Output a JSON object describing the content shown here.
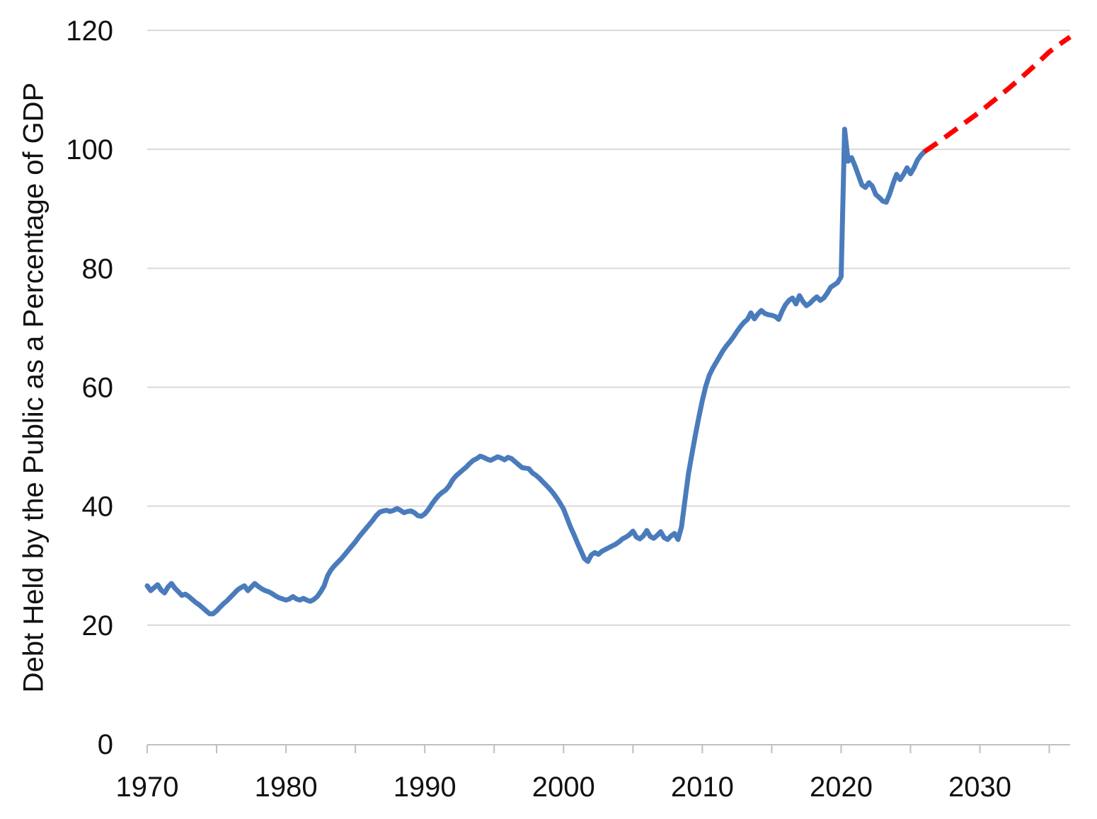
{
  "chart_data": {
    "type": "line",
    "title": "",
    "xlabel": "",
    "ylabel": "Debt Held by the Public as a Percentage of GDP",
    "xlim": [
      1970,
      2036.5
    ],
    "ylim": [
      0,
      120
    ],
    "y_ticks": [
      0,
      20,
      40,
      60,
      80,
      100,
      120
    ],
    "x_tick_labels": [
      1970,
      1980,
      1990,
      2000,
      2010,
      2020,
      2030
    ],
    "x_minor_ticks": [
      1970,
      1975,
      1980,
      1985,
      1990,
      1995,
      2000,
      2005,
      2010,
      2015,
      2020,
      2025,
      2030,
      2035
    ],
    "grid": "horizontal",
    "legend": "none",
    "colors": {
      "historical": "#4A7CBC",
      "projection": "#FF0000",
      "gridline": "#D9D9D9",
      "axis": "#BFBFBF",
      "text": "#111111",
      "background": "#FFFFFF"
    },
    "series": [
      {
        "name": "historical",
        "style": "solid",
        "color_key": "historical",
        "points": [
          [
            1970.0,
            26.6
          ],
          [
            1970.25,
            25.8
          ],
          [
            1970.5,
            26.3
          ],
          [
            1970.75,
            26.8
          ],
          [
            1971.0,
            25.9
          ],
          [
            1971.25,
            25.4
          ],
          [
            1971.5,
            26.4
          ],
          [
            1971.75,
            27.0
          ],
          [
            1972.0,
            26.2
          ],
          [
            1972.25,
            25.6
          ],
          [
            1972.5,
            25.0
          ],
          [
            1972.75,
            25.2
          ],
          [
            1973.0,
            24.8
          ],
          [
            1973.25,
            24.3
          ],
          [
            1973.5,
            23.8
          ],
          [
            1973.75,
            23.4
          ],
          [
            1974.0,
            22.9
          ],
          [
            1974.25,
            22.4
          ],
          [
            1974.5,
            21.9
          ],
          [
            1974.75,
            21.9
          ],
          [
            1975.0,
            22.4
          ],
          [
            1975.25,
            23.0
          ],
          [
            1975.5,
            23.6
          ],
          [
            1975.75,
            24.1
          ],
          [
            1976.0,
            24.7
          ],
          [
            1976.25,
            25.3
          ],
          [
            1976.5,
            25.9
          ],
          [
            1976.75,
            26.3
          ],
          [
            1977.0,
            26.6
          ],
          [
            1977.25,
            25.8
          ],
          [
            1977.5,
            26.4
          ],
          [
            1977.75,
            27.0
          ],
          [
            1978.0,
            26.5
          ],
          [
            1978.25,
            26.1
          ],
          [
            1978.5,
            25.8
          ],
          [
            1978.75,
            25.6
          ],
          [
            1979.0,
            25.3
          ],
          [
            1979.25,
            24.9
          ],
          [
            1979.5,
            24.6
          ],
          [
            1979.75,
            24.4
          ],
          [
            1980.0,
            24.2
          ],
          [
            1980.25,
            24.4
          ],
          [
            1980.5,
            24.8
          ],
          [
            1980.75,
            24.4
          ],
          [
            1981.0,
            24.2
          ],
          [
            1981.25,
            24.5
          ],
          [
            1981.5,
            24.2
          ],
          [
            1981.75,
            24.0
          ],
          [
            1982.0,
            24.3
          ],
          [
            1982.25,
            24.8
          ],
          [
            1982.5,
            25.6
          ],
          [
            1982.75,
            26.6
          ],
          [
            1983.0,
            28.3
          ],
          [
            1983.25,
            29.3
          ],
          [
            1983.5,
            30.0
          ],
          [
            1983.75,
            30.6
          ],
          [
            1984.0,
            31.2
          ],
          [
            1984.25,
            31.9
          ],
          [
            1984.5,
            32.6
          ],
          [
            1984.75,
            33.3
          ],
          [
            1985.0,
            34.0
          ],
          [
            1985.25,
            34.8
          ],
          [
            1985.5,
            35.5
          ],
          [
            1985.75,
            36.2
          ],
          [
            1986.0,
            36.9
          ],
          [
            1986.25,
            37.6
          ],
          [
            1986.5,
            38.4
          ],
          [
            1986.75,
            39.0
          ],
          [
            1987.0,
            39.2
          ],
          [
            1987.25,
            39.3
          ],
          [
            1987.5,
            39.1
          ],
          [
            1987.75,
            39.3
          ],
          [
            1988.0,
            39.6
          ],
          [
            1988.25,
            39.3
          ],
          [
            1988.5,
            38.9
          ],
          [
            1988.75,
            39.1
          ],
          [
            1989.0,
            39.2
          ],
          [
            1989.25,
            38.9
          ],
          [
            1989.5,
            38.4
          ],
          [
            1989.75,
            38.3
          ],
          [
            1990.0,
            38.7
          ],
          [
            1990.25,
            39.4
          ],
          [
            1990.5,
            40.3
          ],
          [
            1990.75,
            41.1
          ],
          [
            1991.0,
            41.8
          ],
          [
            1991.25,
            42.3
          ],
          [
            1991.5,
            42.7
          ],
          [
            1991.75,
            43.4
          ],
          [
            1992.0,
            44.4
          ],
          [
            1992.25,
            45.1
          ],
          [
            1992.5,
            45.6
          ],
          [
            1992.75,
            46.1
          ],
          [
            1993.0,
            46.6
          ],
          [
            1993.25,
            47.2
          ],
          [
            1993.5,
            47.7
          ],
          [
            1993.75,
            48.0
          ],
          [
            1994.0,
            48.4
          ],
          [
            1994.25,
            48.2
          ],
          [
            1994.5,
            47.9
          ],
          [
            1994.75,
            47.7
          ],
          [
            1995.0,
            48.0
          ],
          [
            1995.25,
            48.3
          ],
          [
            1995.5,
            48.1
          ],
          [
            1995.75,
            47.8
          ],
          [
            1996.0,
            48.2
          ],
          [
            1996.25,
            48.0
          ],
          [
            1996.5,
            47.5
          ],
          [
            1996.75,
            47.0
          ],
          [
            1997.0,
            46.5
          ],
          [
            1997.25,
            46.4
          ],
          [
            1997.5,
            46.3
          ],
          [
            1997.75,
            45.6
          ],
          [
            1998.0,
            45.2
          ],
          [
            1998.25,
            44.7
          ],
          [
            1998.5,
            44.1
          ],
          [
            1998.75,
            43.5
          ],
          [
            1999.0,
            42.9
          ],
          [
            1999.25,
            42.2
          ],
          [
            1999.5,
            41.4
          ],
          [
            1999.75,
            40.5
          ],
          [
            2000.0,
            39.5
          ],
          [
            2000.25,
            38.0
          ],
          [
            2000.5,
            36.5
          ],
          [
            2000.75,
            35.2
          ],
          [
            2001.0,
            33.8
          ],
          [
            2001.25,
            32.5
          ],
          [
            2001.5,
            31.2
          ],
          [
            2001.75,
            30.7
          ],
          [
            2002.0,
            31.8
          ],
          [
            2002.25,
            32.2
          ],
          [
            2002.5,
            31.9
          ],
          [
            2002.75,
            32.4
          ],
          [
            2003.0,
            32.7
          ],
          [
            2003.25,
            33.0
          ],
          [
            2003.5,
            33.3
          ],
          [
            2003.75,
            33.6
          ],
          [
            2004.0,
            34.0
          ],
          [
            2004.25,
            34.5
          ],
          [
            2004.5,
            34.8
          ],
          [
            2004.75,
            35.2
          ],
          [
            2005.0,
            35.8
          ],
          [
            2005.25,
            34.8
          ],
          [
            2005.5,
            34.5
          ],
          [
            2005.75,
            35.0
          ],
          [
            2006.0,
            35.9
          ],
          [
            2006.25,
            34.9
          ],
          [
            2006.5,
            34.6
          ],
          [
            2006.75,
            35.1
          ],
          [
            2007.0,
            35.7
          ],
          [
            2007.25,
            34.7
          ],
          [
            2007.5,
            34.4
          ],
          [
            2007.75,
            35.0
          ],
          [
            2008.0,
            35.4
          ],
          [
            2008.25,
            34.4
          ],
          [
            2008.5,
            36.5
          ],
          [
            2008.75,
            41.0
          ],
          [
            2009.0,
            45.5
          ],
          [
            2009.25,
            48.8
          ],
          [
            2009.5,
            52.0
          ],
          [
            2009.75,
            55.0
          ],
          [
            2010.0,
            57.8
          ],
          [
            2010.25,
            60.2
          ],
          [
            2010.5,
            62.0
          ],
          [
            2010.75,
            63.2
          ],
          [
            2011.0,
            64.2
          ],
          [
            2011.25,
            65.2
          ],
          [
            2011.5,
            66.2
          ],
          [
            2011.75,
            67.0
          ],
          [
            2012.0,
            67.7
          ],
          [
            2012.25,
            68.5
          ],
          [
            2012.5,
            69.4
          ],
          [
            2012.75,
            70.2
          ],
          [
            2013.0,
            70.9
          ],
          [
            2013.25,
            71.4
          ],
          [
            2013.5,
            72.5
          ],
          [
            2013.75,
            71.5
          ],
          [
            2014.0,
            72.3
          ],
          [
            2014.25,
            72.9
          ],
          [
            2014.5,
            72.4
          ],
          [
            2014.75,
            72.2
          ],
          [
            2015.0,
            72.1
          ],
          [
            2015.25,
            71.9
          ],
          [
            2015.5,
            71.4
          ],
          [
            2015.75,
            72.8
          ],
          [
            2016.0,
            73.9
          ],
          [
            2016.25,
            74.6
          ],
          [
            2016.5,
            75.0
          ],
          [
            2016.75,
            74.0
          ],
          [
            2017.0,
            75.4
          ],
          [
            2017.25,
            74.4
          ],
          [
            2017.5,
            73.7
          ],
          [
            2017.75,
            74.1
          ],
          [
            2018.0,
            74.7
          ],
          [
            2018.25,
            75.2
          ],
          [
            2018.5,
            74.6
          ],
          [
            2018.75,
            75.0
          ],
          [
            2019.0,
            75.8
          ],
          [
            2019.25,
            76.8
          ],
          [
            2019.5,
            77.2
          ],
          [
            2019.75,
            77.6
          ],
          [
            2020.0,
            78.6
          ],
          [
            2020.25,
            103.4
          ],
          [
            2020.5,
            98.0
          ],
          [
            2020.75,
            98.6
          ],
          [
            2021.0,
            97.2
          ],
          [
            2021.25,
            95.6
          ],
          [
            2021.5,
            94.0
          ],
          [
            2021.75,
            93.6
          ],
          [
            2022.0,
            94.4
          ],
          [
            2022.25,
            93.8
          ],
          [
            2022.5,
            92.4
          ],
          [
            2022.75,
            91.9
          ],
          [
            2023.0,
            91.3
          ],
          [
            2023.25,
            91.1
          ],
          [
            2023.5,
            92.5
          ],
          [
            2023.75,
            94.3
          ],
          [
            2024.0,
            95.8
          ],
          [
            2024.25,
            94.9
          ],
          [
            2024.5,
            95.8
          ],
          [
            2024.75,
            96.9
          ],
          [
            2025.0,
            95.9
          ],
          [
            2025.25,
            96.9
          ],
          [
            2025.5,
            98.2
          ],
          [
            2025.75,
            99.0
          ],
          [
            2026.0,
            99.6
          ]
        ]
      },
      {
        "name": "projection",
        "style": "dashed",
        "color_key": "projection",
        "points": [
          [
            2026.0,
            99.6
          ],
          [
            2026.5,
            100.4
          ],
          [
            2027.0,
            101.2
          ],
          [
            2028.0,
            102.9
          ],
          [
            2029.0,
            104.6
          ],
          [
            2030.0,
            106.3
          ],
          [
            2031.0,
            108.2
          ],
          [
            2032.0,
            110.1
          ],
          [
            2033.0,
            112.1
          ],
          [
            2034.0,
            114.2
          ],
          [
            2035.0,
            116.4
          ],
          [
            2036.0,
            118.1
          ],
          [
            2036.5,
            118.9
          ]
        ]
      }
    ]
  }
}
